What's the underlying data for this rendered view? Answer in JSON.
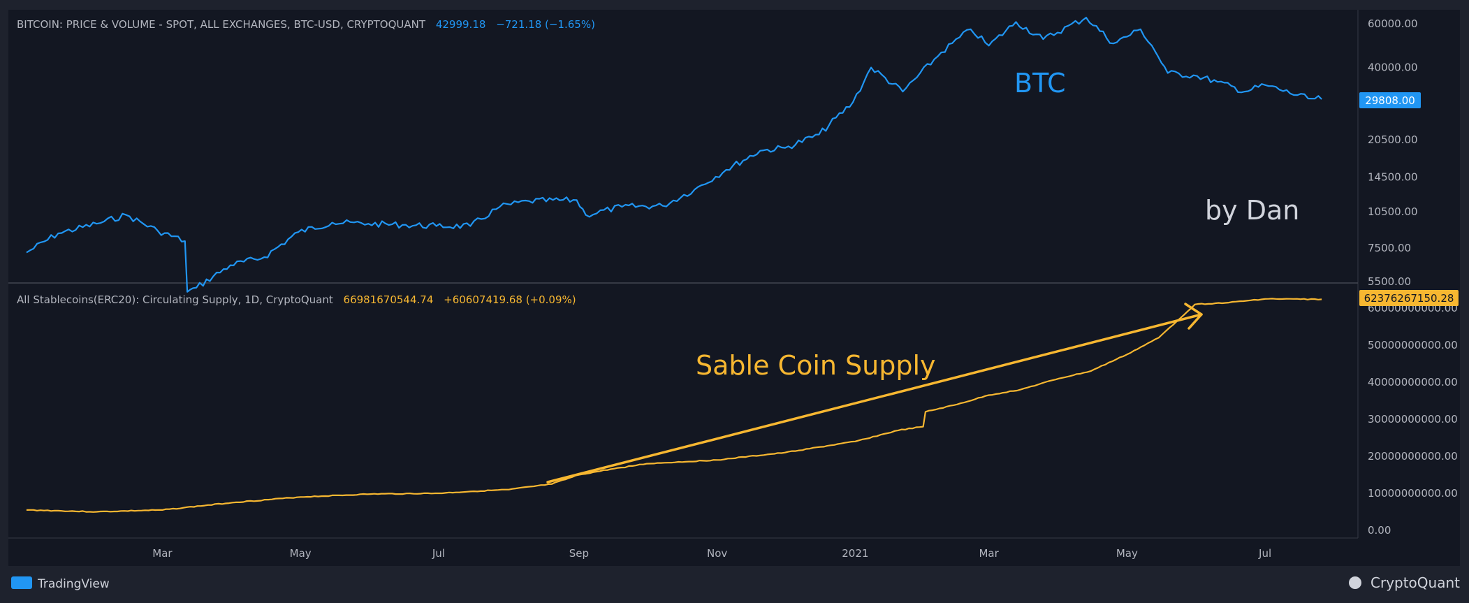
{
  "colors": {
    "background": "#131722",
    "frame": "#1e222d",
    "btc_line": "#2196f3",
    "stable_line": "#f7b731",
    "axis_text": "#b2b5be",
    "annotation_white": "#d1d4dc",
    "panel_divider": "#434651",
    "btc_badge": "#2196f3",
    "stable_badge": "#f7b731"
  },
  "header": {
    "btc_title": "BITCOIN: PRICE & VOLUME - SPOT, ALL EXCHANGES, BTC-USD, CRYPTOQUANT",
    "btc_value": "42999.18",
    "btc_change": "−721.18 (−1.65%)",
    "stable_title": "All Stablecoins(ERC20): Circulating Supply, 1D, CryptoQuant",
    "stable_value": "66981670544.74",
    "stable_change": "+60607419.68 (+0.09%)"
  },
  "annotations": {
    "btc_label": "BTC",
    "author": "by Dan",
    "supply_label": "Sable Coin Supply"
  },
  "badges": {
    "btc_last": "29808.00",
    "stable_last": "62376267150.28"
  },
  "footer": {
    "left_brand": "TradingView",
    "right_brand": "CryptoQuant"
  },
  "chart_data": [
    {
      "type": "line",
      "title": "BITCOIN: PRICE & VOLUME - SPOT, ALL EXCHANGES, BTC-USD, CRYPTOQUANT",
      "scale": "log",
      "x_ticks": [
        "Mar",
        "May",
        "Jul",
        "Sep",
        "Nov",
        "2021",
        "Mar",
        "May",
        "Jul"
      ],
      "y_ticks": [
        "60000.00",
        "40000.00",
        "29808.00",
        "20500.00",
        "14500.00",
        "10500.00",
        "7500.00",
        "5500.00"
      ],
      "series": [
        {
          "name": "BTC",
          "x": [
            "2020-01-01",
            "2020-01-15",
            "2020-02-01",
            "2020-02-14",
            "2020-02-28",
            "2020-03-11",
            "2020-03-12",
            "2020-03-16",
            "2020-03-31",
            "2020-04-15",
            "2020-04-30",
            "2020-05-15",
            "2020-05-31",
            "2020-06-15",
            "2020-06-30",
            "2020-07-15",
            "2020-07-28",
            "2020-08-10",
            "2020-08-31",
            "2020-09-04",
            "2020-09-20",
            "2020-10-08",
            "2020-10-22",
            "2020-11-05",
            "2020-11-20",
            "2020-12-01",
            "2020-12-16",
            "2020-12-31",
            "2021-01-08",
            "2021-01-22",
            "2021-02-08",
            "2021-02-21",
            "2021-03-01",
            "2021-03-13",
            "2021-03-25",
            "2021-04-13",
            "2021-04-25",
            "2021-05-07",
            "2021-05-12",
            "2021-05-19",
            "2021-06-01",
            "2021-06-10",
            "2021-06-22",
            "2021-07-01",
            "2021-07-20",
            "2021-07-26"
          ],
          "values": [
            7200,
            8600,
            9400,
            10200,
            8800,
            8000,
            5000,
            5200,
            6400,
            6900,
            8700,
            9500,
            9400,
            9300,
            9200,
            9200,
            11000,
            11600,
            11700,
            10200,
            11000,
            11100,
            12900,
            15500,
            18500,
            19000,
            21500,
            29000,
            40000,
            32000,
            46000,
            57000,
            49000,
            61000,
            52000,
            63500,
            50000,
            57000,
            49000,
            38000,
            37000,
            35000,
            32000,
            34000,
            30000,
            29808
          ]
        }
      ]
    },
    {
      "type": "line",
      "title": "All Stablecoins(ERC20): Circulating Supply, 1D, CryptoQuant",
      "y_ticks": [
        "60000000000.00",
        "50000000000.00",
        "40000000000.00",
        "30000000000.00",
        "20000000000.00",
        "10000000000.00",
        "0.00"
      ],
      "series": [
        {
          "name": "All Stablecoins(ERC20)",
          "x": [
            "2020-01-01",
            "2020-02-01",
            "2020-03-01",
            "2020-04-01",
            "2020-05-01",
            "2020-06-01",
            "2020-07-01",
            "2020-07-15",
            "2020-08-01",
            "2020-08-20",
            "2020-09-01",
            "2020-09-15",
            "2020-10-01",
            "2020-11-01",
            "2020-12-01",
            "2021-01-01",
            "2021-01-20",
            "2021-01-31",
            "2021-02-01",
            "2021-02-15",
            "2021-03-01",
            "2021-03-15",
            "2021-04-01",
            "2021-04-15",
            "2021-05-01",
            "2021-05-15",
            "2021-05-31",
            "2021-06-15",
            "2021-07-01",
            "2021-07-26"
          ],
          "values": [
            5500000000,
            5000000000,
            5500000000,
            7500000000,
            9000000000,
            9800000000,
            10000000000,
            10500000000,
            11000000000,
            12500000000,
            15000000000,
            16500000000,
            18000000000,
            19000000000,
            21000000000,
            24000000000,
            27000000000,
            28000000000,
            32000000000,
            34000000000,
            36500000000,
            38000000000,
            41000000000,
            43000000000,
            47500000000,
            52000000000,
            61000000000,
            61500000000,
            62500000000,
            62376267150.28
          ]
        }
      ]
    }
  ]
}
